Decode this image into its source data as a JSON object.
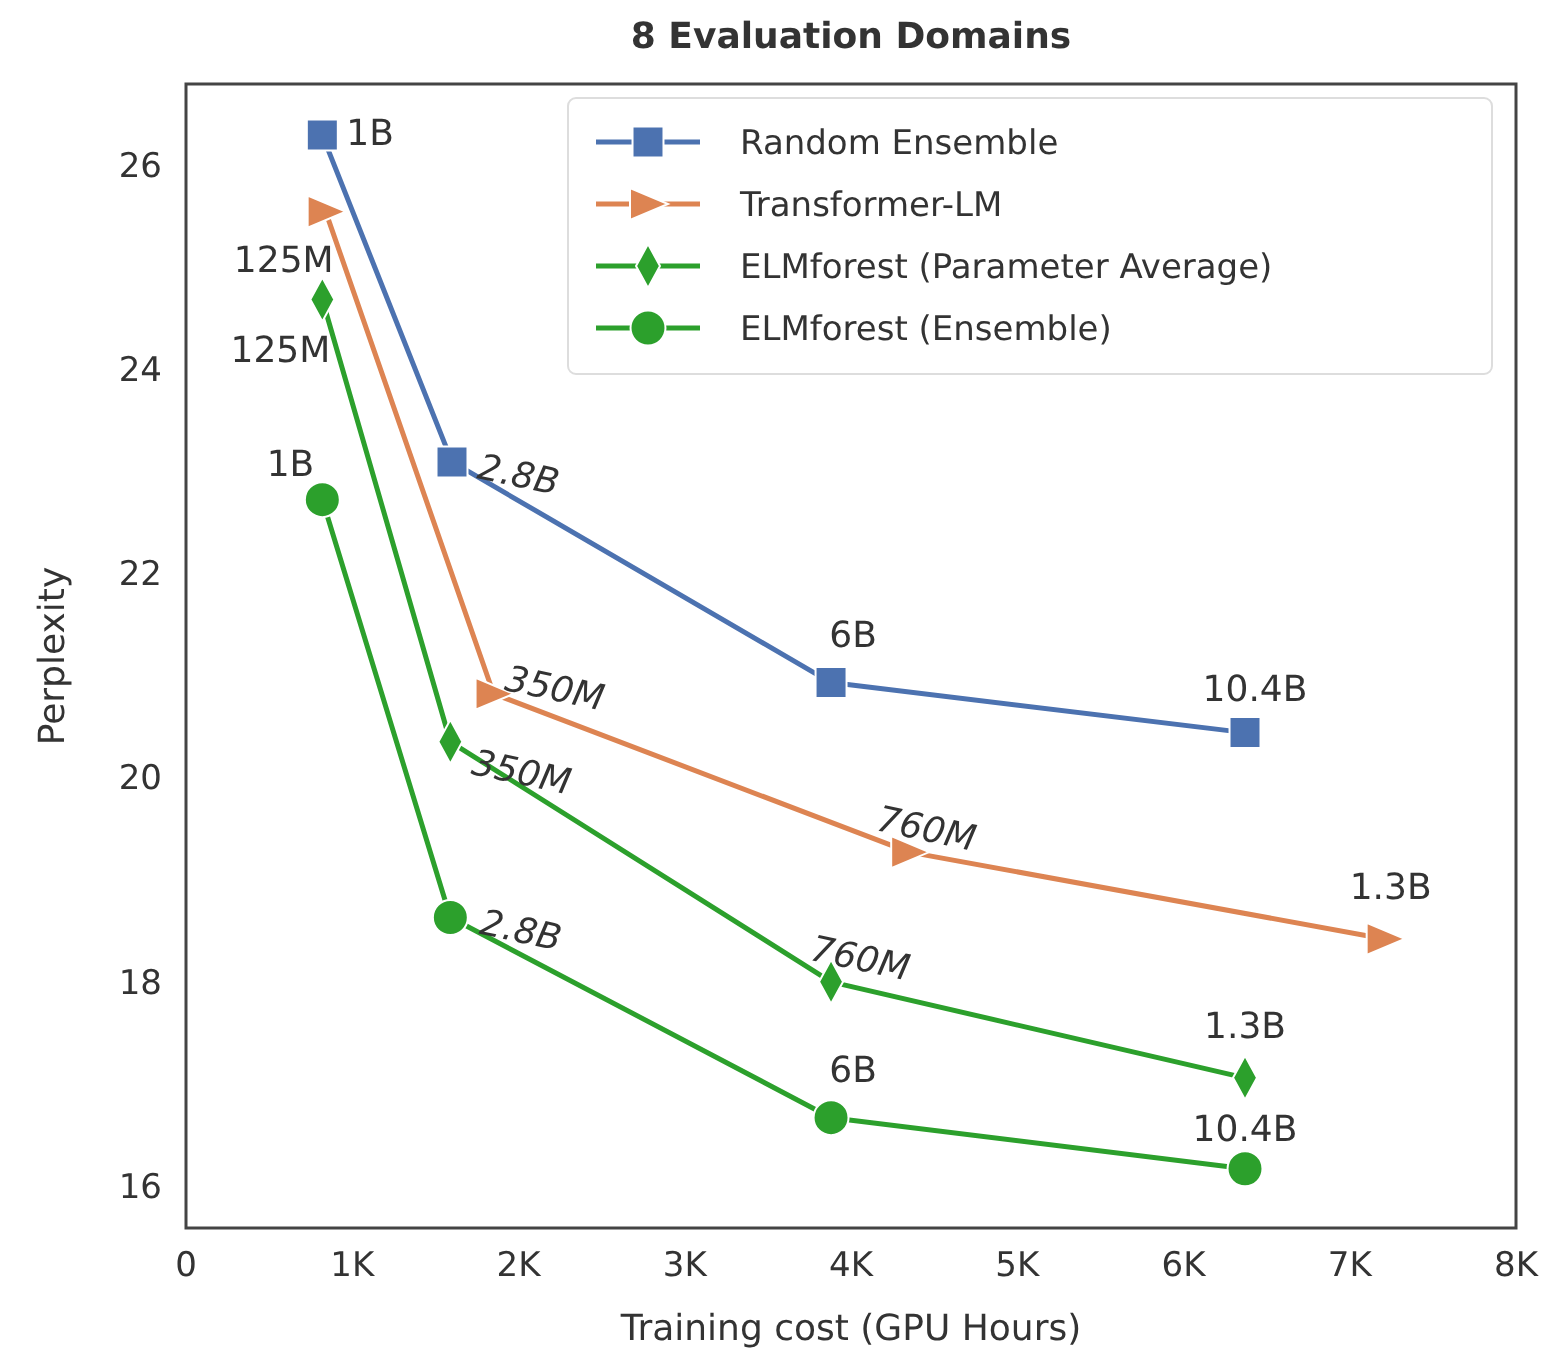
{
  "chart_data": {
    "type": "line",
    "title": "8 Evaluation Domains",
    "xlabel": "Training cost (GPU Hours)",
    "ylabel": "Perplexity",
    "xlim": [
      0,
      8000
    ],
    "ylim": [
      15.6,
      26.8
    ],
    "xticks": [
      0,
      {
        "value": 1000,
        "label": "1K"
      },
      {
        "value": 2000,
        "label": "2K"
      },
      {
        "value": 3000,
        "label": "3K"
      },
      {
        "value": 4000,
        "label": "4K"
      },
      {
        "value": 5000,
        "label": "5K"
      },
      {
        "value": 6000,
        "label": "6K"
      },
      {
        "value": 7000,
        "label": "7K"
      },
      {
        "value": 8000,
        "label": "8K"
      }
    ],
    "yticks": [
      16,
      18,
      20,
      22,
      24,
      26
    ],
    "grid": false,
    "legend": "top right",
    "series": [
      {
        "name": "Random Ensemble",
        "color": "#4c72b0",
        "marker": "square",
        "x": [
          820,
          1600,
          3880,
          6370
        ],
        "values": [
          26.3,
          23.1,
          20.94,
          20.45
        ]
      },
      {
        "name": "Transformer-LM",
        "color": "#dd8452",
        "marker": "triangle",
        "x": [
          840,
          1850,
          4350,
          7210
        ],
        "values": [
          25.55,
          20.83,
          19.28,
          18.43
        ]
      },
      {
        "name": "ELMforest (Parameter Average)",
        "color": "#2ca02c",
        "marker": "diamond",
        "x": [
          820,
          1590,
          3880,
          6370
        ],
        "values": [
          24.69,
          20.36,
          18.01,
          17.07
        ]
      },
      {
        "name": "ELMforest (Ensemble)",
        "color": "#2ca02c",
        "marker": "circle",
        "x": [
          820,
          1590,
          3880,
          6370
        ],
        "values": [
          22.73,
          18.64,
          16.68,
          16.18
        ]
      }
    ],
    "annotations": [
      {
        "text": "1B",
        "x": 820,
        "y": 26.3
      },
      {
        "text": "2.8B",
        "x": 1600,
        "y": 23.1
      },
      {
        "text": "6B",
        "x": 3880,
        "y": 20.94
      },
      {
        "text": "10.4B",
        "x": 6370,
        "y": 20.45
      },
      {
        "text": "125M",
        "x": 840,
        "y": 25.55
      },
      {
        "text": "350M",
        "x": 1850,
        "y": 20.83
      },
      {
        "text": "760M",
        "x": 4350,
        "y": 19.28
      },
      {
        "text": "1.3B",
        "x": 7210,
        "y": 18.43
      },
      {
        "text": "125M",
        "x": 820,
        "y": 24.69
      },
      {
        "text": "350M",
        "x": 1590,
        "y": 20.36
      },
      {
        "text": "760M",
        "x": 3880,
        "y": 18.01
      },
      {
        "text": "1.3B",
        "x": 6370,
        "y": 17.07
      },
      {
        "text": "1B",
        "x": 820,
        "y": 22.73
      },
      {
        "text": "2.8B",
        "x": 1590,
        "y": 18.64
      },
      {
        "text": "6B",
        "x": 3880,
        "y": 16.68
      },
      {
        "text": "10.4B",
        "x": 6370,
        "y": 16.18
      }
    ]
  }
}
